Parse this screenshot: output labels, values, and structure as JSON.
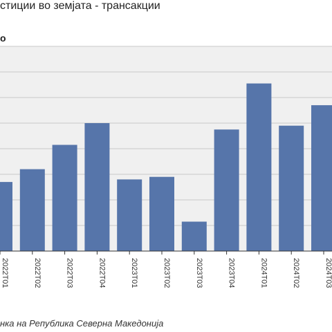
{
  "title": "стиции во земјата - трансакции",
  "unit_fragment": "о",
  "source": "нка на Република Северна Македонија",
  "colors": {
    "bar": "#5675aa",
    "plot_bg": "#f0f0f0",
    "grid": "#c8c8c8",
    "axis": "#333333"
  },
  "chart_data": {
    "type": "bar",
    "title": "стиции во земјата - трансакции",
    "xlabel": "",
    "ylabel": "",
    "grid": true,
    "categories": [
      "2022Т01",
      "2022Т02",
      "2022Т03",
      "2022Т04",
      "2023Т01",
      "2023Т02",
      "2023Т03",
      "2023Т04",
      "2024Т01",
      "2024Т02",
      "2024Т03"
    ],
    "series": [
      {
        "values": [
          5.4,
          6.4,
          8.3,
          10.0,
          5.6,
          5.8,
          2.3,
          9.5,
          13.1,
          9.8,
          11.4
        ]
      }
    ],
    "ylim": [
      0,
      16
    ]
  }
}
